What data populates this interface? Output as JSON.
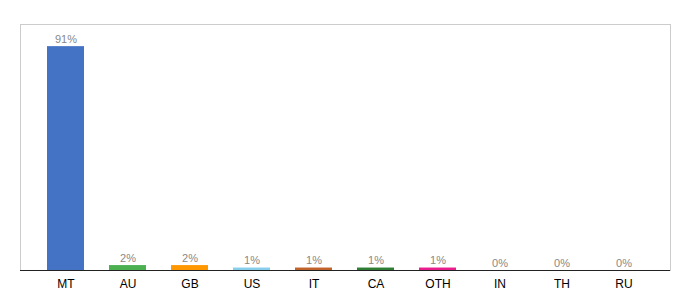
{
  "chart_data": {
    "type": "bar",
    "categories": [
      "MT",
      "AU",
      "GB",
      "US",
      "IT",
      "CA",
      "OTH",
      "IN",
      "TH",
      "RU"
    ],
    "values": [
      91,
      2,
      2,
      1,
      1,
      1,
      1,
      0,
      0,
      0
    ],
    "value_labels": [
      "91%",
      "2%",
      "2%",
      "1%",
      "1%",
      "1%",
      "1%",
      "0%",
      "0%",
      "0%"
    ],
    "colors": [
      "#4472c4",
      "#4caf50",
      "#ff9800",
      "#87ceeb",
      "#c0622a",
      "#2e7d32",
      "#e91e8c",
      "#ffffff",
      "#ffffff",
      "#ffffff"
    ],
    "ylim": [
      0,
      100
    ],
    "grid": false,
    "data_labels": true,
    "tick_labels": "x"
  }
}
